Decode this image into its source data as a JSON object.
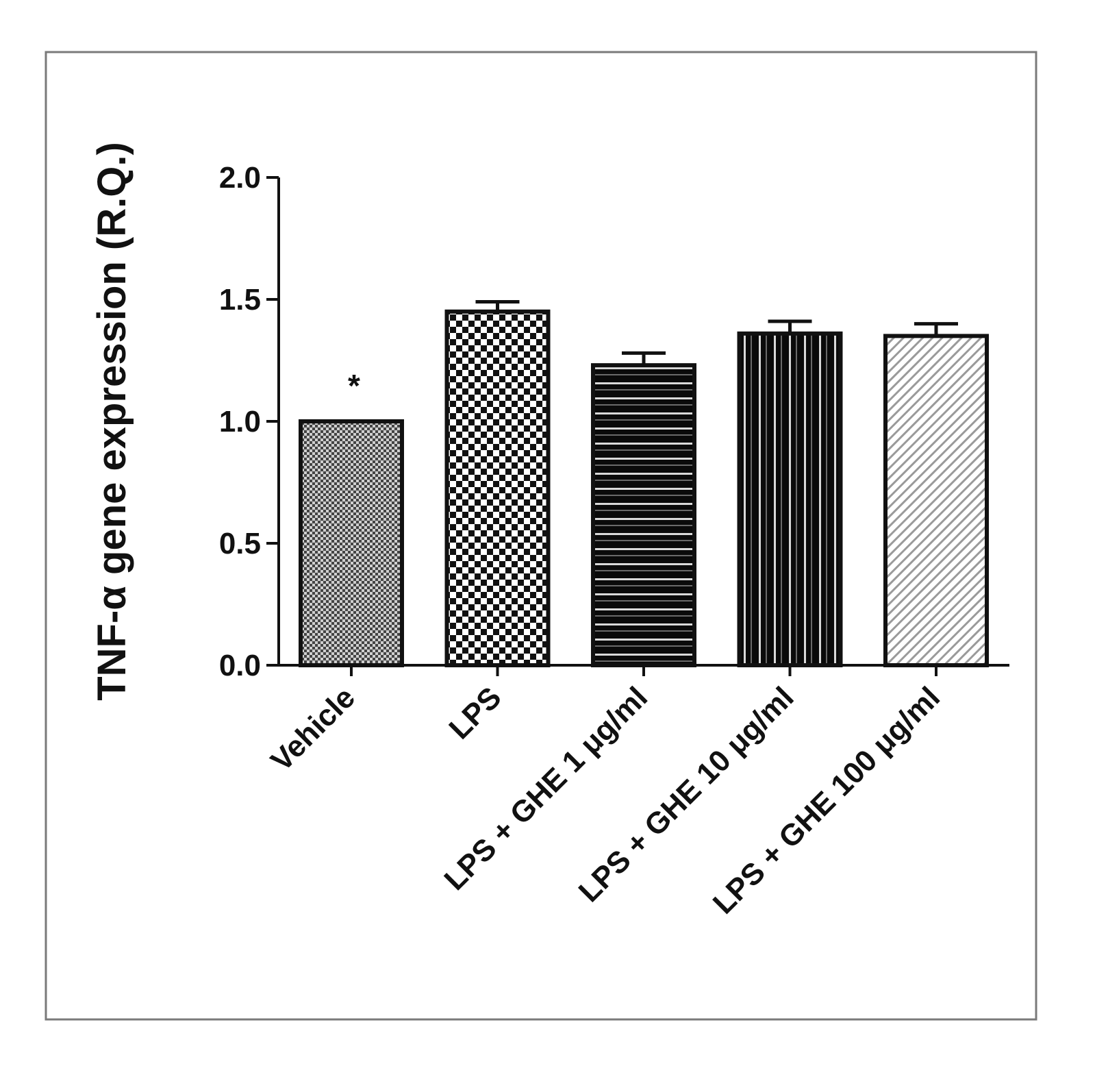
{
  "chart_data": {
    "type": "bar",
    "title": "",
    "ylabel": "TNF-α gene expression (R.Q.)",
    "xlabel": "",
    "categories": [
      "Vehicle",
      "LPS",
      "LPS + GHE 1 μg/ml",
      "LPS + GHE 10 μg/ml",
      "LPS + GHE 100 μg/ml"
    ],
    "values": [
      1.0,
      1.45,
      1.23,
      1.36,
      1.35
    ],
    "error": [
      0.0,
      0.04,
      0.05,
      0.05,
      0.05
    ],
    "annotations": [
      "*",
      "",
      "",
      "",
      ""
    ],
    "ylim": [
      0.0,
      2.0
    ],
    "yticks": [
      "0.0",
      "0.5",
      "1.0",
      "1.5",
      "2.0"
    ],
    "ytick_values": [
      0.0,
      0.5,
      1.0,
      1.5,
      2.0
    ],
    "patterns": [
      "fine-dots",
      "checker",
      "horizontal-stripes",
      "vertical-stripes",
      "diagonal-hatch"
    ],
    "colors": {
      "frame": "#7a7a7a",
      "axis": "#111111",
      "bar_outline": "#111111",
      "background": "#ffffff"
    },
    "grid": false,
    "legend": "none"
  }
}
